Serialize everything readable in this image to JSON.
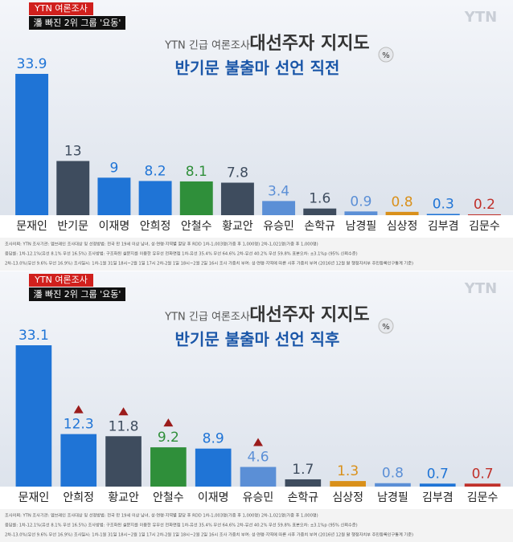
{
  "chart_data": [
    {
      "type": "bar",
      "badge": "YTN 여론조사",
      "headline": "潘 빠진 2위 그룹 '요동'",
      "brand": "YTN",
      "kicker": "YTN 긴급 여론조사",
      "title": "대선주자 지지도",
      "subtitle": "반기문 불출마 선언 직전",
      "unit": "%",
      "categories": [
        "문재인",
        "반기문",
        "이재명",
        "안희정",
        "안철수",
        "황교안",
        "유승민",
        "손학규",
        "남경필",
        "심상정",
        "김부겸",
        "김문수"
      ],
      "values": [
        33.9,
        13,
        9,
        8.2,
        8.1,
        7.8,
        3.4,
        1.6,
        0.9,
        0.8,
        0.3,
        0.2
      ],
      "colors": [
        "#1f74d6",
        "#3e4c5e",
        "#1f74d6",
        "#1f74d6",
        "#2f8f3a",
        "#3e4c5e",
        "#5b8fd6",
        "#3e4c5e",
        "#5b8fd6",
        "#d9901a",
        "#1f74d6",
        "#c0302a"
      ],
      "notes": [
        "조사의뢰: YTN   조사기관: 엠브레인   조사대상 및 선정방법: 전국 만 19세 이상 남녀, 성·연령·지역별 할당 후 RDD  1차-1,003명(가중 후 1,000명)  2차-1,021명(가중 후 1,000명)",
        "응답률: 1차-12.1%(유선 8.1% 무선 16.5%)   조사방법: 구조화된 설문지를 이용한 유무선 전화면접  1차-유선 35.4% 무선 64.6%  2차-유선 40.2% 무선 59.8%   표본오차: ±3.1%p (95% 신뢰수준)",
        "2차-13.0%(유선 9.6% 무선 16.9%)   조사일시: 1차-1월 31일 18시~2월 1일 17시  2차-2월 1일 18시~2월 2일 16시   조사 가중치 부여: 성·연령·지역에 따른 사후 가중치 부여 (2016년 12월 말 행정자치부 주민등록인구통계 기준)"
      ]
    },
    {
      "type": "bar",
      "badge": "YTN 여론조사",
      "headline": "潘 빠진 2위 그룹 '요동'",
      "brand": "YTN",
      "kicker": "YTN 긴급 여론조사",
      "title": "대선주자 지지도",
      "subtitle": "반기문 불출마 선언 직후",
      "unit": "%",
      "categories": [
        "문재인",
        "안희정",
        "황교안",
        "안철수",
        "이재명",
        "유승민",
        "손학규",
        "심상정",
        "남경필",
        "김부겸",
        "김문수"
      ],
      "values": [
        33.1,
        12.3,
        11.8,
        9.2,
        8.9,
        4.6,
        1.7,
        1.3,
        0.8,
        0.7,
        0.7
      ],
      "colors": [
        "#1f74d6",
        "#1f74d6",
        "#3e4c5e",
        "#2f8f3a",
        "#1f74d6",
        "#5b8fd6",
        "#3e4c5e",
        "#d9901a",
        "#5b8fd6",
        "#1f74d6",
        "#c0302a"
      ],
      "rising": [
        false,
        true,
        true,
        true,
        false,
        true,
        false,
        false,
        false,
        false,
        false
      ],
      "notes": [
        "조사의뢰: YTN   조사기관: 엠브레인   조사대상 및 선정방법: 전국 만 19세 이상 남녀, 성·연령·지역별 할당 후 RDD  1차-1,003명(가중 후 1,000명)  2차-1,021명(가중 후 1,000명)",
        "응답률: 1차-12.1%(유선 8.1% 무선 16.5%)   조사방법: 구조화된 설문지를 이용한 유무선 전화면접  1차-유선 35.4% 무선 64.6%  2차-유선 40.2% 무선 59.8%   표본오차: ±3.1%p (95% 신뢰수준)",
        "2차-13.0%(유선 9.6% 무선 16.9%)   조사일시: 1차-1월 31일 18시~2월 1일 17시  2차-2월 1일 18시~2월 2일 16시   조사 가중치 부여: 성·연령·지역에 따른 사후 가중치 부여 (2016년 12월 말 행정자치부 주민등록인구통계 기준)"
      ]
    }
  ]
}
